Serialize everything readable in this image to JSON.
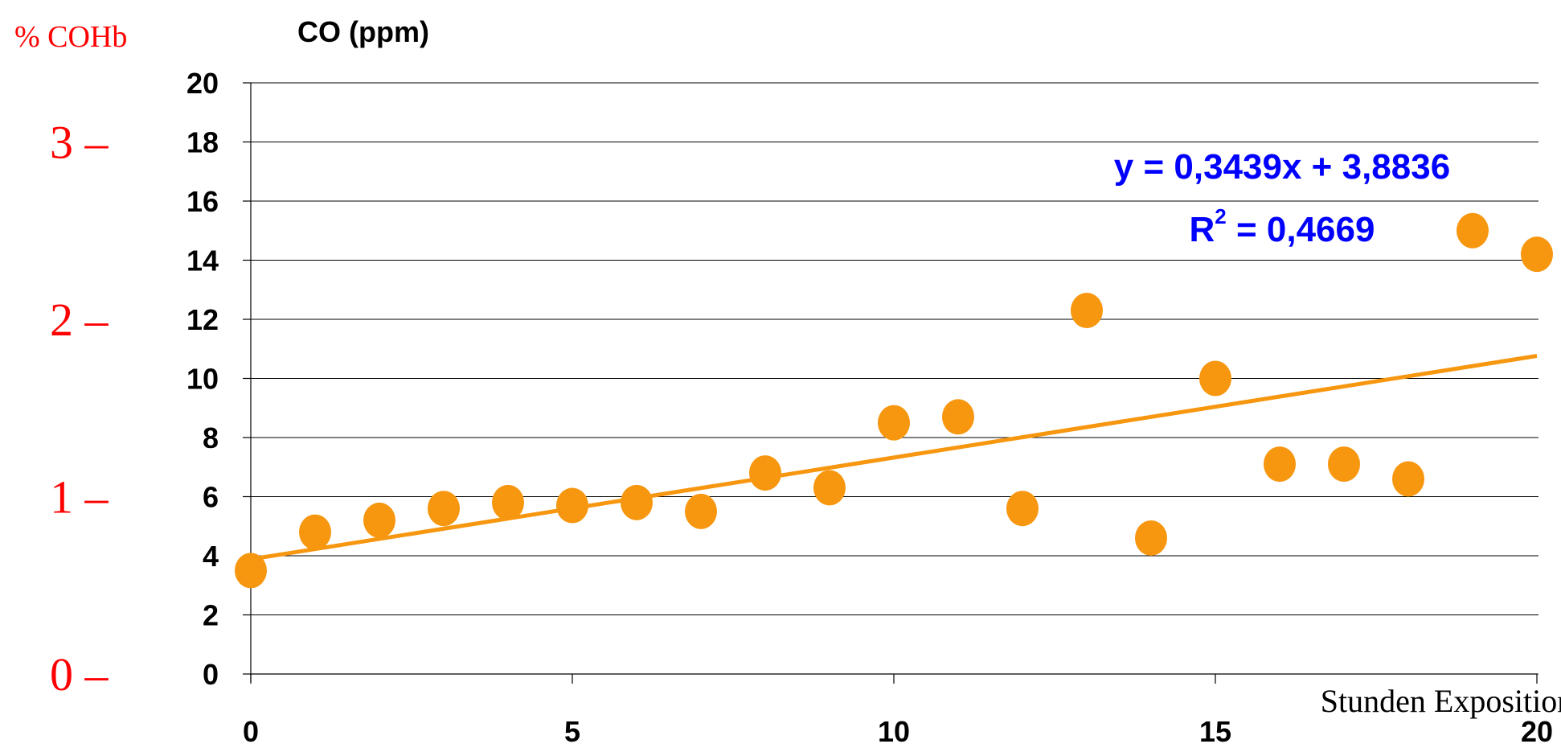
{
  "chart_data": {
    "type": "scatter",
    "y_axis_title": "CO (ppm)",
    "x_axis_title": "Stunden Exposition",
    "secondary_axis_title": "% COHb",
    "secondary_ticks": [
      "3 –",
      "2 –",
      "1 –",
      "0 –"
    ],
    "secondary_tick_values_ppm": [
      18,
      12,
      6,
      0
    ],
    "xlim": [
      0,
      20
    ],
    "ylim": [
      0,
      20
    ],
    "x_ticks": [
      0,
      5,
      10,
      15,
      20
    ],
    "y_ticks": [
      0,
      2,
      4,
      6,
      8,
      10,
      12,
      14,
      16,
      18,
      20
    ],
    "grid": "horizontal",
    "points": [
      {
        "x": 0,
        "y": 3.5
      },
      {
        "x": 1,
        "y": 4.8
      },
      {
        "x": 2,
        "y": 5.2
      },
      {
        "x": 3,
        "y": 5.6
      },
      {
        "x": 4,
        "y": 5.8
      },
      {
        "x": 5,
        "y": 5.7
      },
      {
        "x": 6,
        "y": 5.8
      },
      {
        "x": 7,
        "y": 5.5
      },
      {
        "x": 8,
        "y": 6.8
      },
      {
        "x": 9,
        "y": 6.3
      },
      {
        "x": 10,
        "y": 8.5
      },
      {
        "x": 11,
        "y": 8.7
      },
      {
        "x": 12,
        "y": 5.6
      },
      {
        "x": 13,
        "y": 12.3
      },
      {
        "x": 14,
        "y": 4.6
      },
      {
        "x": 15,
        "y": 10.0
      },
      {
        "x": 16,
        "y": 7.1
      },
      {
        "x": 17,
        "y": 7.1
      },
      {
        "x": 18,
        "y": 6.6
      },
      {
        "x": 19,
        "y": 15.0
      },
      {
        "x": 20,
        "y": 14.2
      }
    ],
    "trendline": {
      "slope": 0.3439,
      "intercept": 3.8836
    },
    "equation_label": "y = 0,3439x + 3,8836",
    "r2_label_prefix": "R",
    "r2_label_sup": "2",
    "r2_label_suffix": " = 0,4669",
    "colors": {
      "points": "#f7960f",
      "trendline": "#f7960f",
      "equation": "#0000ff",
      "secondary_axis": "#ff0000",
      "grid": "#000000"
    }
  }
}
